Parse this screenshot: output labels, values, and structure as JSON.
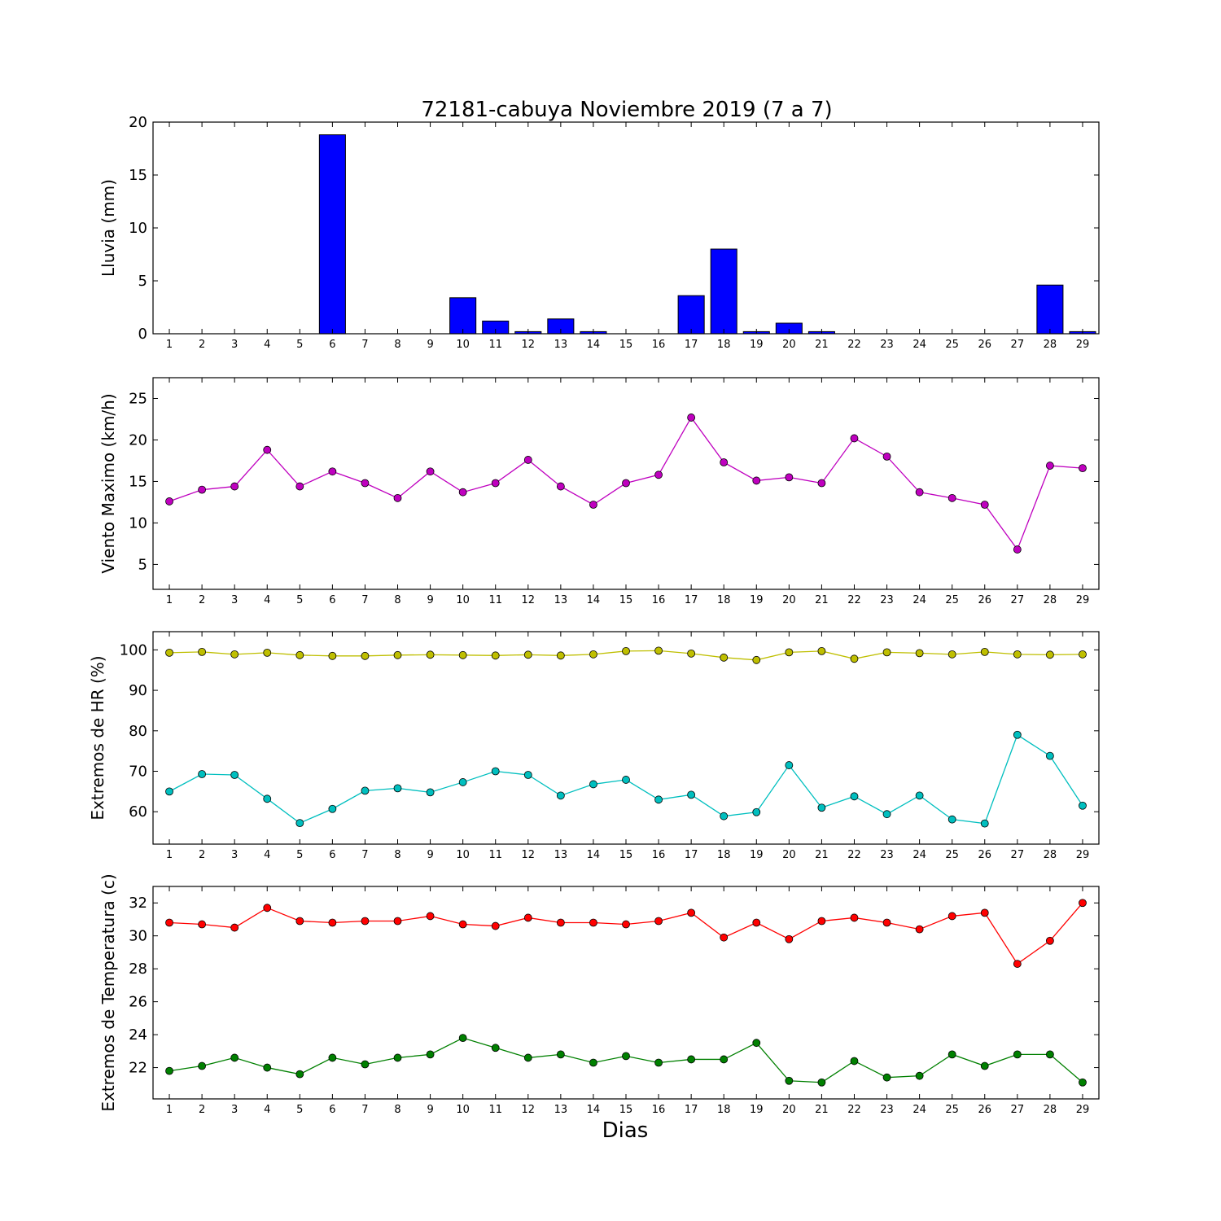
{
  "figure": {
    "title": "72181-cabuya Noviembre 2019  (7 a 7)",
    "xlabel": "Dias"
  },
  "chart_data": [
    {
      "type": "bar",
      "ylabel": "Lluvia (mm)",
      "ylim": [
        0,
        20
      ],
      "yticks": [
        0,
        5,
        10,
        15,
        20
      ],
      "categories": [
        "1",
        "2",
        "3",
        "4",
        "5",
        "6",
        "7",
        "8",
        "9",
        "10",
        "11",
        "12",
        "13",
        "14",
        "15",
        "16",
        "17",
        "18",
        "19",
        "20",
        "21",
        "22",
        "23",
        "24",
        "25",
        "26",
        "27",
        "28",
        "29"
      ],
      "series": [
        {
          "color": "#0000ff",
          "values": [
            0,
            0,
            0,
            0,
            0,
            18.8,
            0,
            0,
            0,
            3.4,
            1.2,
            0.2,
            1.4,
            0.2,
            0,
            0,
            3.6,
            8.0,
            0.2,
            1.0,
            0.2,
            0,
            0,
            0,
            0,
            0,
            0,
            4.6,
            0.2
          ]
        }
      ],
      "grid": false
    },
    {
      "type": "line",
      "ylabel": "Viento Maximo (km/h)",
      "ylim": [
        2,
        27.5
      ],
      "yticks": [
        5,
        10,
        15,
        20,
        25
      ],
      "categories": [
        "1",
        "2",
        "3",
        "4",
        "5",
        "6",
        "7",
        "8",
        "9",
        "10",
        "11",
        "12",
        "13",
        "14",
        "15",
        "16",
        "17",
        "18",
        "19",
        "20",
        "21",
        "22",
        "23",
        "24",
        "25",
        "26",
        "27",
        "28",
        "29"
      ],
      "series": [
        {
          "color": "#bf00bf",
          "values": [
            12.6,
            14.0,
            14.4,
            18.8,
            14.4,
            16.2,
            14.8,
            13.0,
            16.2,
            13.7,
            14.8,
            17.6,
            14.4,
            12.2,
            14.8,
            15.8,
            22.7,
            17.3,
            15.1,
            15.5,
            14.8,
            20.2,
            18.0,
            13.7,
            13.0,
            12.2,
            6.8,
            16.9,
            16.6
          ]
        }
      ],
      "grid": false
    },
    {
      "type": "line",
      "ylabel": "Extremos de HR (%)",
      "ylim": [
        52,
        104.5
      ],
      "yticks": [
        60,
        70,
        80,
        90,
        100
      ],
      "categories": [
        "1",
        "2",
        "3",
        "4",
        "5",
        "6",
        "7",
        "8",
        "9",
        "10",
        "11",
        "12",
        "13",
        "14",
        "15",
        "16",
        "17",
        "18",
        "19",
        "20",
        "21",
        "22",
        "23",
        "24",
        "25",
        "26",
        "27",
        "28",
        "29"
      ],
      "series": [
        {
          "color": "#bfbf00",
          "values": [
            99.3,
            99.5,
            98.9,
            99.3,
            98.7,
            98.5,
            98.5,
            98.7,
            98.8,
            98.7,
            98.6,
            98.8,
            98.6,
            98.9,
            99.7,
            99.8,
            99.1,
            98.1,
            97.5,
            99.4,
            99.7,
            97.8,
            99.4,
            99.2,
            98.9,
            99.5,
            98.9,
            98.8,
            98.9
          ]
        },
        {
          "color": "#00bfbf",
          "values": [
            65.0,
            69.3,
            69.1,
            63.2,
            57.2,
            60.7,
            65.2,
            65.8,
            64.8,
            67.3,
            70.0,
            69.1,
            64.0,
            66.8,
            67.9,
            63.0,
            64.2,
            58.9,
            59.9,
            71.5,
            61.0,
            63.8,
            59.4,
            64.0,
            58.1,
            57.1,
            79.0,
            73.8,
            61.5
          ]
        }
      ],
      "grid": false
    },
    {
      "type": "line",
      "ylabel": "Extremos de Temperatura (c)",
      "ylim": [
        20.1,
        33.0
      ],
      "yticks": [
        22,
        24,
        26,
        28,
        30,
        32
      ],
      "categories": [
        "1",
        "2",
        "3",
        "4",
        "5",
        "6",
        "7",
        "8",
        "9",
        "10",
        "11",
        "12",
        "13",
        "14",
        "15",
        "16",
        "17",
        "18",
        "19",
        "20",
        "21",
        "22",
        "23",
        "24",
        "25",
        "26",
        "27",
        "28",
        "29"
      ],
      "series": [
        {
          "color": "#ff0000",
          "values": [
            30.8,
            30.7,
            30.5,
            31.7,
            30.9,
            30.8,
            30.9,
            30.9,
            31.2,
            30.7,
            30.6,
            31.1,
            30.8,
            30.8,
            30.7,
            30.9,
            31.4,
            29.9,
            30.8,
            29.8,
            30.9,
            31.1,
            30.8,
            30.4,
            31.2,
            31.4,
            28.3,
            29.7,
            32.0
          ]
        },
        {
          "color": "#008000",
          "values": [
            21.8,
            22.1,
            22.6,
            22.0,
            21.6,
            22.6,
            22.2,
            22.6,
            22.8,
            23.8,
            23.2,
            22.6,
            22.8,
            22.3,
            22.7,
            22.3,
            22.5,
            22.5,
            23.5,
            21.2,
            21.1,
            22.4,
            21.4,
            21.5,
            22.8,
            22.1,
            22.8,
            22.8,
            21.1
          ]
        }
      ],
      "grid": false
    }
  ]
}
